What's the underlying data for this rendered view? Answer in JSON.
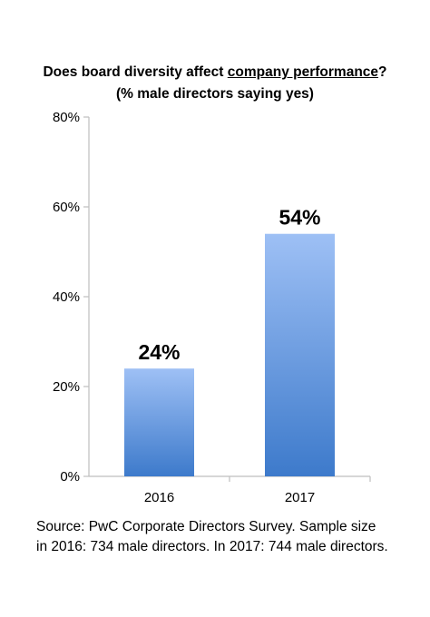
{
  "title": {
    "line1_prefix": "Does board diversity affect ",
    "line1_emph": "company performance",
    "line1_suffix": "?",
    "line2": "(% male directors saying yes)"
  },
  "source": {
    "line1": "Source: PwC Corporate Directors Survey. Sample size",
    "line2": "in 2016: 734 male directors. In 2017: 744 male directors."
  },
  "chart_data": {
    "type": "bar",
    "title": "Does board diversity affect company performance? (% male directors saying yes)",
    "categories": [
      "2016",
      "2017"
    ],
    "values": [
      24,
      54
    ],
    "data_labels": [
      "24%",
      "54%"
    ],
    "ylim": [
      0,
      80
    ],
    "yticks": [
      0,
      20,
      40,
      60,
      80
    ],
    "ytick_labels": [
      "0%",
      "20%",
      "40%",
      "60%",
      "80%"
    ],
    "grid": false,
    "legend": "none",
    "bar_color_top": "#9ec0f5",
    "bar_color_bottom": "#3d7acb",
    "axis_color": "#bfbfbf"
  }
}
